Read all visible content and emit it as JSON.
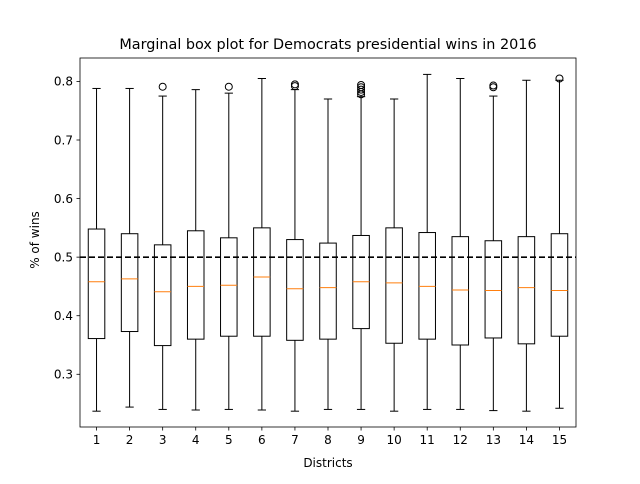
{
  "chart_data": {
    "type": "box",
    "title": "Marginal box plot for Democrats presidential wins in 2016",
    "xlabel": "Districts",
    "ylabel": "% of wins",
    "ylim": [
      0.21,
      0.84
    ],
    "yticks": [
      0.3,
      0.4,
      0.5,
      0.6,
      0.7,
      0.8
    ],
    "ytick_labels": [
      "0.3",
      "0.4",
      "0.5",
      "0.6",
      "0.7",
      "0.8"
    ],
    "categories": [
      "1",
      "2",
      "3",
      "4",
      "5",
      "6",
      "7",
      "8",
      "9",
      "10",
      "11",
      "12",
      "13",
      "14",
      "15"
    ],
    "reference_line": {
      "y": 0.5,
      "style": "dashed",
      "color": "#000000"
    },
    "median_color": "#ff7f0e",
    "grid": false,
    "boxes": [
      {
        "whislo": 0.237,
        "q1": 0.361,
        "med": 0.458,
        "q3": 0.548,
        "whishi": 0.788,
        "fliers": []
      },
      {
        "whislo": 0.244,
        "q1": 0.373,
        "med": 0.463,
        "q3": 0.54,
        "whishi": 0.788,
        "fliers": []
      },
      {
        "whislo": 0.24,
        "q1": 0.349,
        "med": 0.441,
        "q3": 0.521,
        "whishi": 0.775,
        "fliers": [
          0.791
        ]
      },
      {
        "whislo": 0.239,
        "q1": 0.36,
        "med": 0.45,
        "q3": 0.545,
        "whishi": 0.786,
        "fliers": []
      },
      {
        "whislo": 0.24,
        "q1": 0.365,
        "med": 0.452,
        "q3": 0.533,
        "whishi": 0.78,
        "fliers": [
          0.791
        ]
      },
      {
        "whislo": 0.239,
        "q1": 0.365,
        "med": 0.466,
        "q3": 0.55,
        "whishi": 0.805,
        "fliers": []
      },
      {
        "whislo": 0.237,
        "q1": 0.358,
        "med": 0.446,
        "q3": 0.53,
        "whishi": 0.786,
        "fliers": [
          0.792,
          0.795
        ]
      },
      {
        "whislo": 0.24,
        "q1": 0.36,
        "med": 0.448,
        "q3": 0.524,
        "whishi": 0.77,
        "fliers": []
      },
      {
        "whislo": 0.24,
        "q1": 0.378,
        "med": 0.458,
        "q3": 0.537,
        "whishi": 0.774,
        "fliers": [
          0.778,
          0.782,
          0.786,
          0.79,
          0.794
        ]
      },
      {
        "whislo": 0.237,
        "q1": 0.353,
        "med": 0.456,
        "q3": 0.55,
        "whishi": 0.77,
        "fliers": []
      },
      {
        "whislo": 0.24,
        "q1": 0.36,
        "med": 0.45,
        "q3": 0.542,
        "whishi": 0.812,
        "fliers": []
      },
      {
        "whislo": 0.24,
        "q1": 0.35,
        "med": 0.444,
        "q3": 0.535,
        "whishi": 0.805,
        "fliers": []
      },
      {
        "whislo": 0.238,
        "q1": 0.362,
        "med": 0.443,
        "q3": 0.528,
        "whishi": 0.775,
        "fliers": [
          0.79,
          0.793
        ]
      },
      {
        "whislo": 0.237,
        "q1": 0.352,
        "med": 0.448,
        "q3": 0.535,
        "whishi": 0.802,
        "fliers": []
      },
      {
        "whislo": 0.242,
        "q1": 0.365,
        "med": 0.443,
        "q3": 0.54,
        "whishi": 0.802,
        "fliers": [
          0.805
        ]
      }
    ]
  }
}
